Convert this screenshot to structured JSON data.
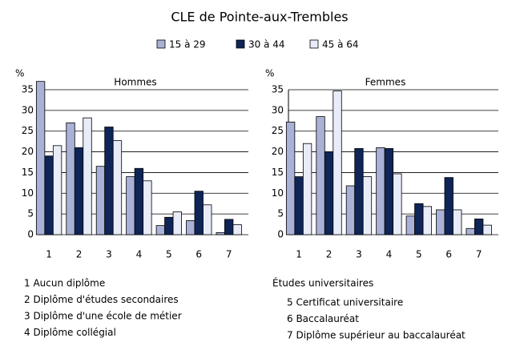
{
  "title": "CLE de Pointe-aux-Trembles",
  "chart_data": [
    {
      "type": "bar",
      "title": "Hommes",
      "y_label": "%",
      "categories": [
        "1",
        "2",
        "3",
        "4",
        "5",
        "6",
        "7"
      ],
      "series": [
        {
          "name": "15 à 29",
          "color": "#a9b1d6",
          "values": [
            37,
            27,
            16.5,
            14,
            2.2,
            3.4,
            0.5
          ]
        },
        {
          "name": "30 à 44",
          "color": "#0f2557",
          "values": [
            19,
            21,
            26,
            16,
            4.2,
            10.5,
            3.7
          ]
        },
        {
          "name": "45 à 64",
          "color": "#e8ecf8",
          "values": [
            21.5,
            28.2,
            22.7,
            13,
            5.5,
            7.2,
            2.4
          ]
        }
      ],
      "ylim": [
        0,
        35
      ],
      "yticks": [
        0,
        5,
        10,
        15,
        20,
        25,
        30,
        35
      ],
      "grid": true
    },
    {
      "type": "bar",
      "title": "Femmes",
      "y_label": "%",
      "categories": [
        "1",
        "2",
        "3",
        "4",
        "5",
        "6",
        "7"
      ],
      "series": [
        {
          "color": "#a9b1d6",
          "values": [
            27.2,
            28.5,
            11.8,
            21,
            4.5,
            6,
            1.5
          ]
        },
        {
          "color": "#0f2557",
          "values": [
            14,
            20,
            20.8,
            20.8,
            7.5,
            13.8,
            3.8
          ]
        },
        {
          "color": "#e8ecf8",
          "values": [
            22,
            34.7,
            14,
            14.7,
            6.8,
            6,
            2.3
          ]
        }
      ],
      "ylim": [
        0,
        35
      ],
      "yticks": [
        0,
        5,
        10,
        15,
        20,
        25,
        30,
        35
      ],
      "grid": true
    }
  ],
  "notes": {
    "left": [
      "1  Aucun diplôme",
      "2  Diplôme d'études secondaires",
      "3  Diplôme d'une école de métier",
      "4  Diplôme collégial"
    ],
    "right_heading": "Études universitaires",
    "right": [
      "5  Certificat universitaire",
      "6  Baccalauréat",
      "7  Diplôme supérieur au baccalauréat"
    ]
  }
}
